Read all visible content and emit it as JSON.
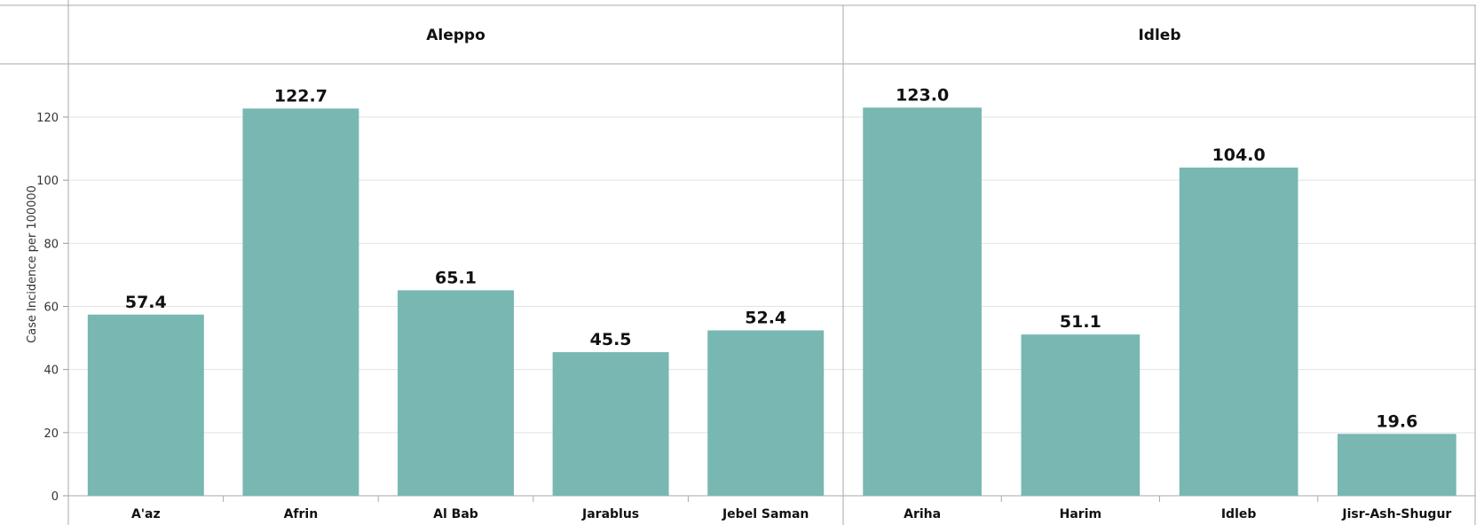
{
  "chart_data": {
    "type": "bar",
    "ylabel": "Case Incidence per 100000",
    "ylim": [
      0,
      135
    ],
    "yticks": [
      0,
      20,
      40,
      60,
      80,
      100,
      120
    ],
    "grid": true,
    "bar_color": "#78b7b2",
    "facets": [
      {
        "label": "Aleppo",
        "categories": [
          "A'az",
          "Afrin",
          "Al Bab",
          "Jarablus",
          "Jebel Saman"
        ],
        "values": [
          57.4,
          122.7,
          65.1,
          45.5,
          52.4
        ],
        "data_labels": [
          "57.4",
          "122.7",
          "65.1",
          "45.5",
          "52.4"
        ]
      },
      {
        "label": "Idleb",
        "categories": [
          "Ariha",
          "Harim",
          "Idleb",
          "Jisr-Ash-Shugur"
        ],
        "values": [
          123.0,
          51.1,
          104.0,
          19.6
        ],
        "data_labels": [
          "123.0",
          "51.1",
          "104.0",
          "19.6"
        ]
      }
    ]
  }
}
